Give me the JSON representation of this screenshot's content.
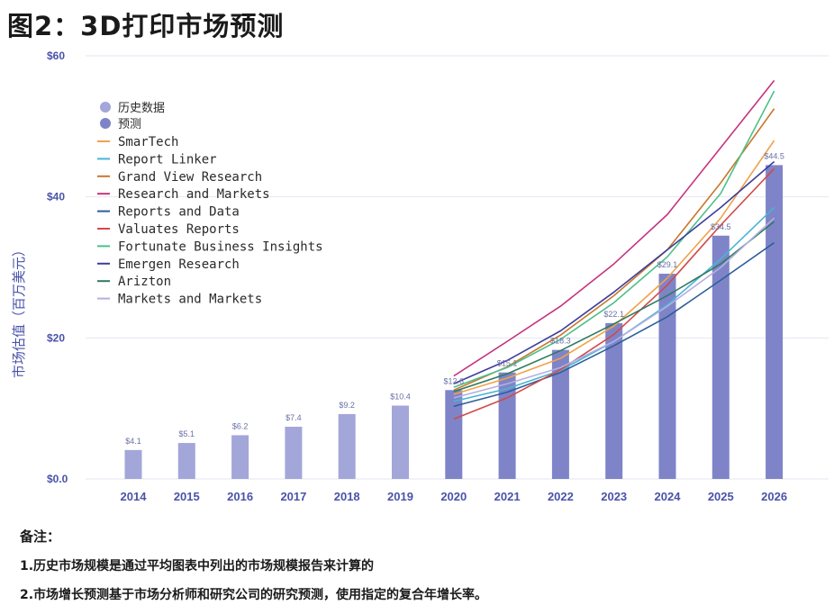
{
  "title": "图2：3D打印市场预测",
  "notes": {
    "heading": "备注：",
    "lines": [
      "1.历史市场规模是通过平均图表中列出的市场规模报告来计算的",
      "2.市场增长预测基于市场分析师和研究公司的研究预测，使用指定的复合年增长率。"
    ]
  },
  "chart_data": {
    "type": "bar",
    "ylabel": "市场估值（百万美元）",
    "ylim": [
      0,
      60
    ],
    "yticks": [
      {
        "value": 0,
        "label": "$0.0"
      },
      {
        "value": 20,
        "label": "$20"
      },
      {
        "value": 40,
        "label": "$40"
      },
      {
        "value": 60,
        "label": "$60"
      }
    ],
    "grid": true,
    "legend_position": "top-left",
    "categories": [
      "2014",
      "2015",
      "2016",
      "2017",
      "2018",
      "2019",
      "2020",
      "2021",
      "2022",
      "2023",
      "2024",
      "2025",
      "2026"
    ],
    "bar_series": [
      {
        "name": "历史数据",
        "color": "#a3a6d8",
        "x": [
          "2014",
          "2015",
          "2016",
          "2017",
          "2018",
          "2019"
        ],
        "values": [
          4.1,
          5.1,
          6.2,
          7.4,
          9.2,
          10.4
        ],
        "labels": [
          "$4.1",
          "$5.1",
          "$6.2",
          "$7.4",
          "$9.2",
          "$10.4"
        ]
      },
      {
        "name": "预测",
        "color": "#7f84c8",
        "x": [
          "2020",
          "2021",
          "2022",
          "2023",
          "2024",
          "2025",
          "2026"
        ],
        "values": [
          12.6,
          15.1,
          18.3,
          22.1,
          29.1,
          34.5,
          44.5
        ],
        "labels": [
          "$12.6",
          "$15.1",
          "$18.3",
          "$22.1",
          "$29.1",
          "$34.5",
          "$44.5"
        ]
      }
    ],
    "line_x": [
      "2020",
      "2021",
      "2022",
      "2023",
      "2024",
      "2025",
      "2026"
    ],
    "line_series": [
      {
        "name": "SmarTech",
        "color": "#f0a24a",
        "values": [
          12.0,
          14.3,
          17.1,
          21.7,
          28.5,
          37.0,
          48.0
        ]
      },
      {
        "name": "Report Linker",
        "color": "#4ab3d6",
        "values": [
          11.0,
          12.8,
          15.4,
          19.5,
          24.7,
          31.2,
          38.5
        ]
      },
      {
        "name": "Grand View Research",
        "color": "#c8772c",
        "values": [
          12.6,
          15.9,
          20.4,
          26.0,
          32.5,
          42.0,
          52.5
        ]
      },
      {
        "name": "Research and Markets",
        "color": "#c5337f",
        "values": [
          14.6,
          19.5,
          24.5,
          30.5,
          37.5,
          47.0,
          56.5
        ]
      },
      {
        "name": "Reports and Data",
        "color": "#2e5e9a",
        "values": [
          10.3,
          12.3,
          15.1,
          18.9,
          23.0,
          28.2,
          33.5
        ]
      },
      {
        "name": "Valuates Reports",
        "color": "#d04a4a",
        "values": [
          8.5,
          11.5,
          15.5,
          20.5,
          27.5,
          36.0,
          44.0
        ]
      },
      {
        "name": "Fortunate Business Insights",
        "color": "#4fc08a",
        "values": [
          13.0,
          15.8,
          19.8,
          25.0,
          31.5,
          40.5,
          55.0
        ]
      },
      {
        "name": "Emergen Research",
        "color": "#3b3f9a",
        "values": [
          13.5,
          16.8,
          21.0,
          26.5,
          32.5,
          38.5,
          45.0
        ]
      },
      {
        "name": "Arizton",
        "color": "#2f7a62",
        "values": [
          12.4,
          14.9,
          18.2,
          22.0,
          26.0,
          30.5,
          36.5
        ]
      },
      {
        "name": "Markets and Markets",
        "color": "#b3b0e0",
        "values": [
          11.5,
          13.5,
          15.8,
          19.5,
          24.5,
          30.0,
          37.0
        ]
      }
    ]
  }
}
